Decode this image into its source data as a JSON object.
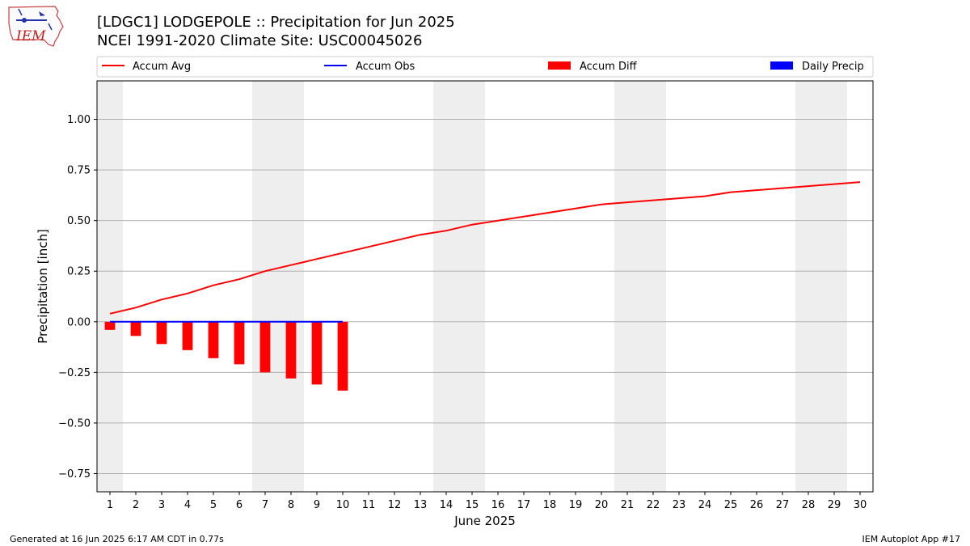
{
  "header": {
    "title_line1": "[LDGC1] LODGEPOLE :: Precipitation for Jun 2025",
    "title_line2": "NCEI 1991-2020 Climate Site: USC00045026"
  },
  "logo": {
    "text": "IEM",
    "icon": "iem-logo-icon"
  },
  "footer": {
    "generated": "Generated at 16 Jun 2025 6:17 AM CDT in 0.77s",
    "app": "IEM Autoplot App #17"
  },
  "colors": {
    "avg": "#ff0000",
    "obs": "#0000ff",
    "diff": "#ff0000",
    "daily": "#0000ff",
    "weekend_shade": "#eeeeee",
    "grid": "#b0b0b0"
  },
  "chart_data": {
    "type": "bar",
    "xlabel": "June 2025",
    "ylabel": "Precipitation [inch]",
    "xlim": [
      0.5,
      30.5
    ],
    "ylim": [
      -0.84,
      1.19
    ],
    "x_ticks": [
      1,
      2,
      3,
      4,
      5,
      6,
      7,
      8,
      9,
      10,
      11,
      12,
      13,
      14,
      15,
      16,
      17,
      18,
      19,
      20,
      21,
      22,
      23,
      24,
      25,
      26,
      27,
      28,
      29,
      30
    ],
    "y_ticks": [
      -0.75,
      -0.5,
      -0.25,
      0.0,
      0.25,
      0.5,
      0.75,
      1.0
    ],
    "y_tick_labels": [
      "−0.75",
      "−0.50",
      "−0.25",
      "0.00",
      "0.25",
      "0.50",
      "0.75",
      "1.00"
    ],
    "grid": "horizontal",
    "legend_position": "top",
    "shaded_days": [
      [
        1,
        1
      ],
      [
        7,
        8
      ],
      [
        14,
        15
      ],
      [
        21,
        22
      ],
      [
        28,
        29
      ]
    ],
    "legend": [
      "Accum Avg",
      "Accum Obs",
      "Accum Diff",
      "Daily Precip"
    ],
    "series": [
      {
        "name": "Accum Avg",
        "kind": "line",
        "x": [
          1,
          2,
          3,
          4,
          5,
          6,
          7,
          8,
          9,
          10,
          11,
          12,
          13,
          14,
          15,
          16,
          17,
          18,
          19,
          20,
          21,
          22,
          23,
          24,
          25,
          26,
          27,
          28,
          29,
          30
        ],
        "values": [
          0.04,
          0.07,
          0.11,
          0.14,
          0.18,
          0.21,
          0.25,
          0.28,
          0.31,
          0.34,
          0.37,
          0.4,
          0.43,
          0.45,
          0.48,
          0.5,
          0.52,
          0.54,
          0.56,
          0.58,
          0.59,
          0.6,
          0.61,
          0.62,
          0.64,
          0.65,
          0.66,
          0.67,
          0.68,
          0.69
        ]
      },
      {
        "name": "Accum Obs",
        "kind": "line",
        "x": [
          1,
          2,
          3,
          4,
          5,
          6,
          7,
          8,
          9,
          10
        ],
        "values": [
          0,
          0,
          0,
          0,
          0,
          0,
          0,
          0,
          0,
          0
        ]
      },
      {
        "name": "Accum Diff",
        "kind": "bar",
        "x": [
          1,
          2,
          3,
          4,
          5,
          6,
          7,
          8,
          9,
          10
        ],
        "values": [
          -0.04,
          -0.07,
          -0.11,
          -0.14,
          -0.18,
          -0.21,
          -0.25,
          -0.28,
          -0.31,
          -0.34
        ]
      },
      {
        "name": "Daily Precip",
        "kind": "bar",
        "x": [
          1,
          2,
          3,
          4,
          5,
          6,
          7,
          8,
          9,
          10
        ],
        "values": [
          0,
          0,
          0,
          0,
          0,
          0,
          0,
          0,
          0,
          0
        ]
      }
    ]
  }
}
